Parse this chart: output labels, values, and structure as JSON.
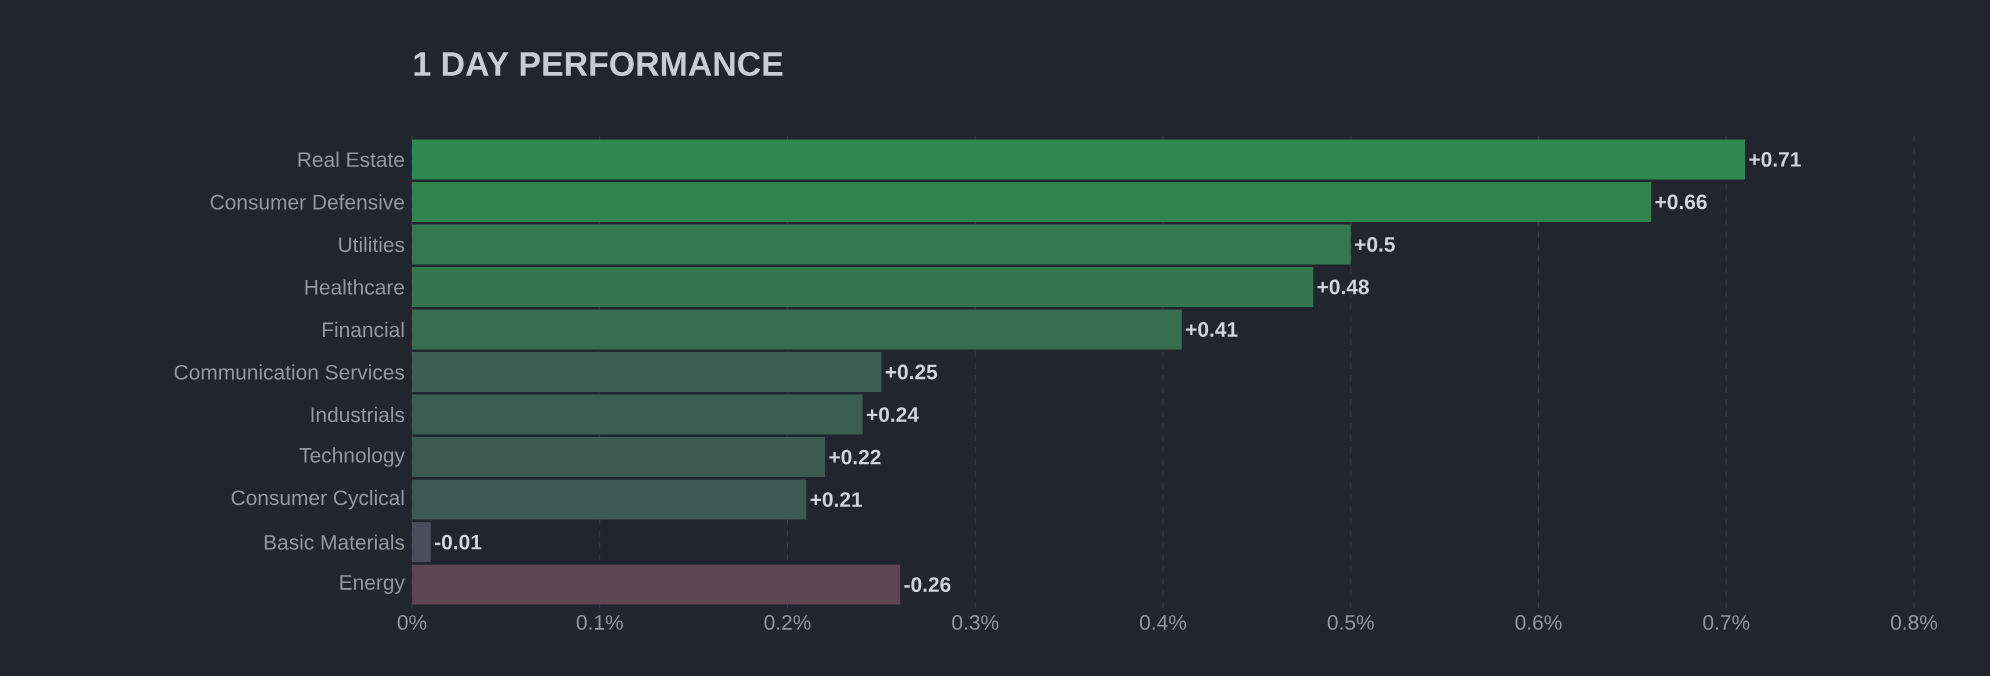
{
  "chart_data": {
    "type": "bar",
    "orientation": "horizontal",
    "title": "1 DAY PERFORMANCE",
    "categories": [
      "Real Estate",
      "Consumer Defensive",
      "Utilities",
      "Healthcare",
      "Financial",
      "Communication Services",
      "Industrials",
      "Technology",
      "Consumer Cyclical",
      "Basic Materials",
      "Energy"
    ],
    "values": [
      0.71,
      0.66,
      0.5,
      0.48,
      0.41,
      0.25,
      0.24,
      0.22,
      0.21,
      -0.01,
      -0.26
    ],
    "base": [
      0,
      0,
      0,
      0,
      0,
      0,
      0,
      0,
      0,
      0.01,
      0.26
    ],
    "value_labels": [
      "+0.71",
      "+0.66",
      "+0.5",
      "+0.48",
      "+0.41",
      "+0.25",
      "+0.24",
      "+0.22",
      "+0.21",
      "-0.01",
      "-0.26"
    ],
    "colors": [
      "#2e8a4e",
      "#2f844c",
      "#33784f",
      "#34764f",
      "#386d50",
      "#3c5f51",
      "#3c5d51",
      "#3d5a51",
      "#3d5951",
      "#494e5c",
      "#5e4553"
    ],
    "xlim": [
      0,
      0.8
    ],
    "xticks": [
      {
        "value": 0,
        "label": "0%"
      },
      {
        "value": 0.1,
        "label": "0.1%"
      },
      {
        "value": 0.2,
        "label": "0.2%"
      },
      {
        "value": 0.3,
        "label": "0.3%"
      },
      {
        "value": 0.4,
        "label": "0.4%"
      },
      {
        "value": 0.5,
        "label": "0.5%"
      },
      {
        "value": 0.6,
        "label": "0.6%"
      },
      {
        "value": 0.7,
        "label": "0.7%"
      },
      {
        "value": 0.8,
        "label": "0.8%"
      }
    ],
    "grid": "x"
  }
}
